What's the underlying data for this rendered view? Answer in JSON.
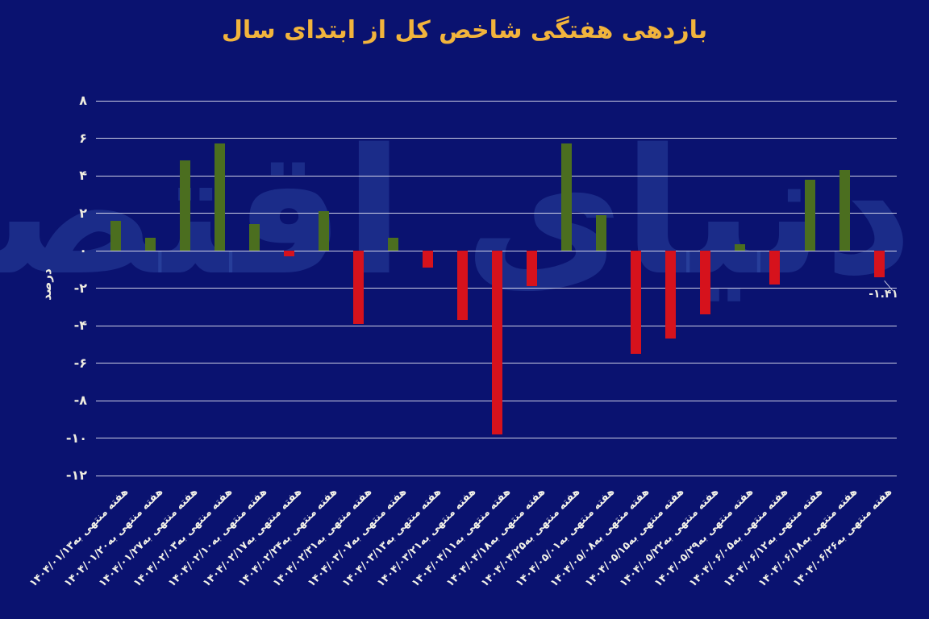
{
  "title": "بازدهی هفتگی شاخص کل از ابتدای سال",
  "watermark": "دنیای اقتصاد",
  "colors": {
    "background": "#0A1270",
    "title": "#F2B43C",
    "positive_bar": "#4B6E1F",
    "negative_bar": "#D6121C",
    "gridline": "#EEEEF8",
    "tick_text": "#EFEDE0",
    "watermark": "#466AC4"
  },
  "chart_data": {
    "type": "bar",
    "title": "بازدهی هفتگی شاخص کل از ابتدای سال",
    "xlabel": "",
    "ylabel": "درصد",
    "ylim": [
      -12,
      8
    ],
    "grid": true,
    "yticks": [
      8,
      6,
      4,
      2,
      0,
      -2,
      -4,
      -6,
      -8,
      -10,
      -12
    ],
    "ytick_labels": [
      "۸",
      "۶",
      "۴",
      "۲",
      "۰",
      "-۲",
      "-۴",
      "-۶",
      "-۸",
      "-۱۰",
      "-۱۲"
    ],
    "categories": [
      "هفته منتهی به۱۴۰۴/۰۱/۱۳",
      "هفته منتهی به۱۴۰۴/۰۱/۲۰",
      "هفته منتهی به۱۴۰۴/۰۱/۲۷",
      "هفته منتهی به۱۴۰۴/۰۲/۰۳",
      "هفته منتهی به۱۴۰۴/۰۲/۱۰",
      "هفته منتهی به۱۴۰۴/۰۲/۱۷",
      "هفته منتهی به۱۴۰۴/۰۲/۲۴",
      "هفته منتهی به۱۴۰۴/۰۲/۳۱",
      "هفته منتهی به۱۴۰۴/۰۳/۰۷",
      "هفته منتهی به۱۴۰۴/۰۳/۱۳",
      "هفته منتهی به۱۴۰۴/۰۳/۲۱",
      "هفته منتهی به۱۴۰۴/۰۴/۱۱",
      "هفته منتهی به۱۴۰۴/۰۴/۱۸",
      "هفته منتهی به۱۴۰۴/۰۴/۲۵",
      "هفته منتهی به۱۴۰۴/۰۵/۰۱",
      "هفته منتهی به۱۴۰۴/۰۵/۰۸",
      "هفته منتهی به۱۴۰۴/۰۵/۱۵",
      "هفته منتهی به۱۴۰۴/۰۵/۲۲",
      "هفته منتهی به۱۴۰۴/۰۵/۲۹",
      "هفته منتهی به۱۴۰۴/۰۶/۰۵",
      "هفته منتهی به۱۴۰۴/۰۶/۱۲",
      "هفته منتهی به۱۴۰۴/۰۶/۱۸",
      "هفته منتهی به۱۴۰۴/۰۶/۲۶"
    ],
    "values": [
      1.6,
      0.7,
      4.8,
      5.7,
      1.4,
      -0.3,
      2.1,
      -3.9,
      0.7,
      -0.9,
      -3.7,
      -9.8,
      -1.9,
      5.7,
      1.9,
      -5.5,
      -4.7,
      -3.4,
      0.35,
      -1.8,
      3.8,
      4.3,
      -1.41
    ],
    "annotation": {
      "index": 22,
      "label": "-۱.۴۱"
    },
    "legend": null,
    "legend_position": "none"
  }
}
